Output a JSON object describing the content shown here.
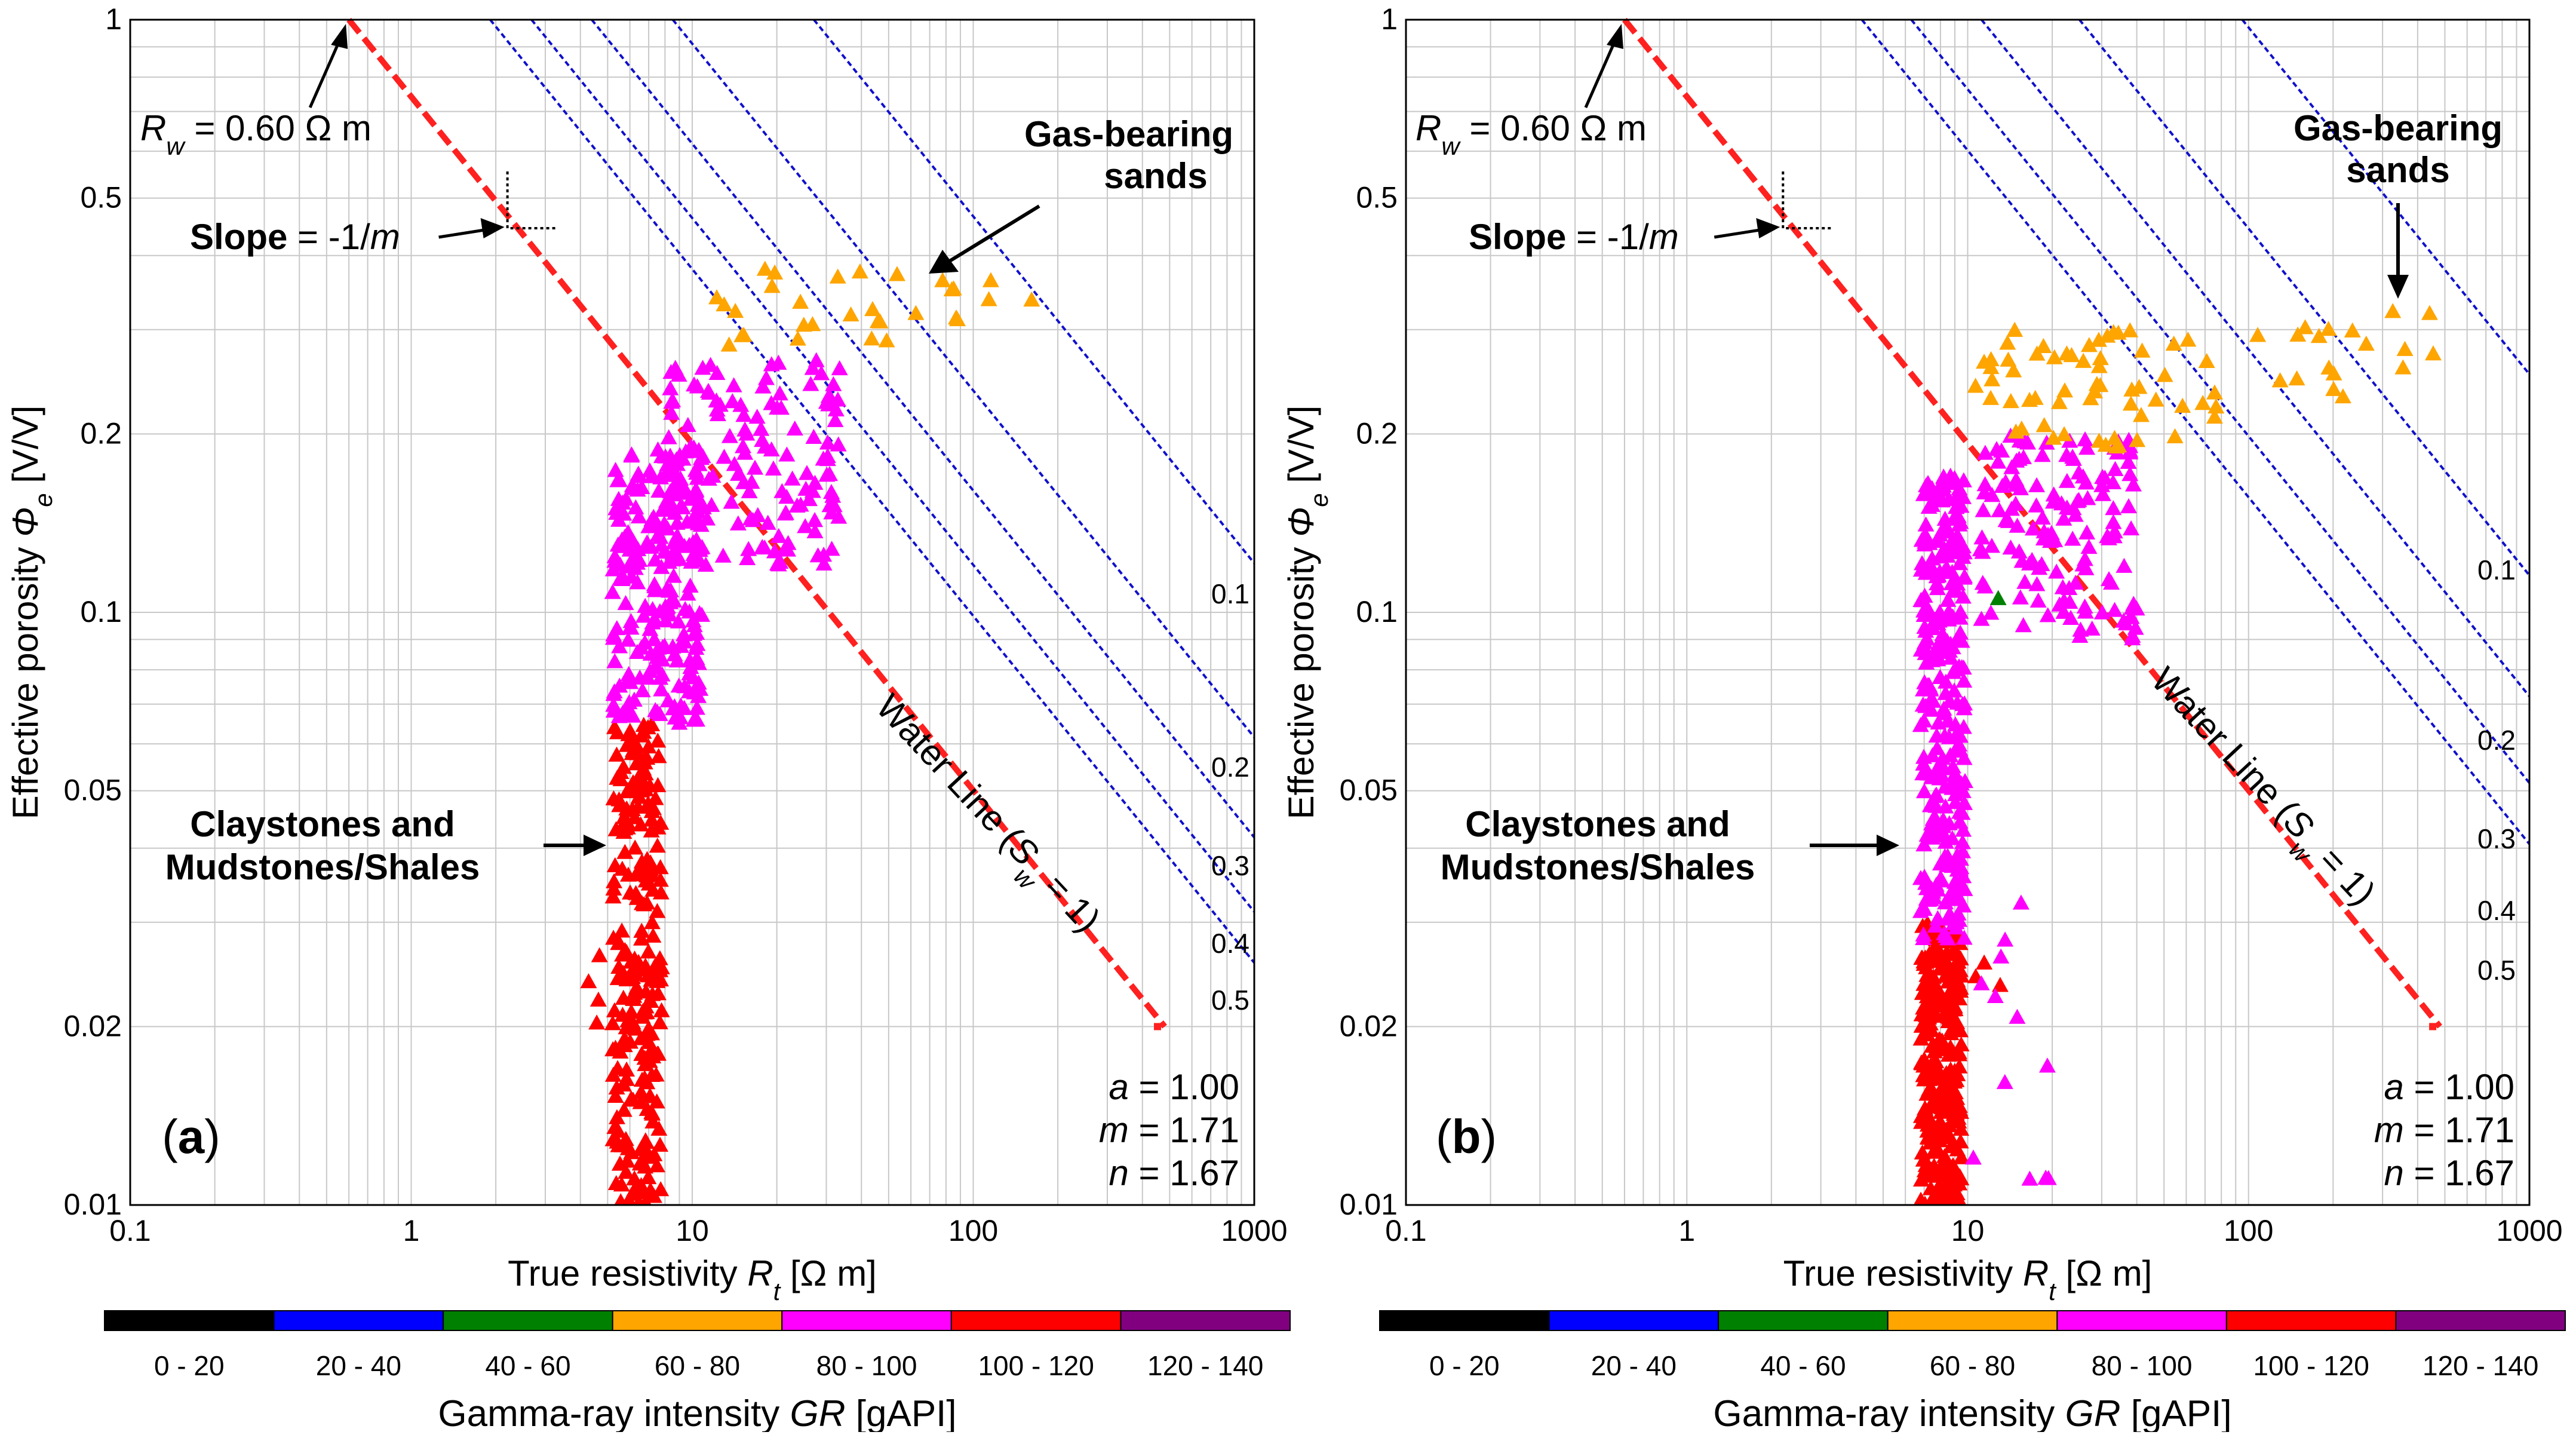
{
  "chart_data": [
    {
      "panel_label": "a",
      "type": "scatter",
      "xscale": "log",
      "yscale": "log",
      "xlim": [
        0.1,
        1000
      ],
      "ylim": [
        0.01,
        1
      ],
      "x_ticks": [
        "0.1",
        "1",
        "10",
        "100",
        "1000"
      ],
      "y_ticks": [
        "0.01",
        "0.02",
        "0.05",
        "0.1",
        "0.2",
        "0.5",
        "1"
      ],
      "xlabel": "True resistivity R_t [Ω m]",
      "ylabel": "Effective porosity Φ_e [V/V]",
      "grid": true,
      "params": {
        "a": "a = 1.00",
        "m": "m = 1.71",
        "n": "n = 1.67"
      },
      "rw_label": "R_w = 0.60 Ω m",
      "water_line_label": "Water Line (S_w = 1)",
      "slope_label": "Slope = -1/m",
      "sw_labels": [
        "0.1",
        "0.2",
        "0.3",
        "0.4",
        "0.5"
      ],
      "annotations": {
        "gas": [
          "Gas-bearing",
          "sands"
        ],
        "clay": [
          "Claystones and",
          "Mudstones/Shales"
        ]
      },
      "water_line": {
        "x": [
          0.6,
          480
        ],
        "y": [
          1,
          0.02
        ]
      },
      "sw_curves": [
        {
          "sw": 0.1,
          "x_at_phi1": 27.1
        },
        {
          "sw": 0.2,
          "x_at_phi1": 8.53
        },
        {
          "sw": 0.3,
          "x_at_phi1": 4.39
        },
        {
          "sw": 0.4,
          "x_at_phi1": 2.68
        },
        {
          "sw": 0.5,
          "x_at_phi1": 1.91
        }
      ],
      "series": [
        {
          "name": "100 - 120",
          "color": "#ff0000",
          "clusters": [
            {
              "x_range": [
                5.2,
                7.8
              ],
              "y_range": [
                0.01,
                0.065
              ],
              "count": 260
            },
            {
              "x_range": [
                3.9,
                5.2
              ],
              "y_range": [
                0.02,
                0.035
              ],
              "count": 4
            }
          ]
        },
        {
          "name": "80 - 100",
          "color": "#ff00ff",
          "clusters": [
            {
              "x_range": [
                5.2,
                11
              ],
              "y_range": [
                0.065,
                0.19
              ],
              "count": 230
            },
            {
              "x_range": [
                8,
                35
              ],
              "y_range": [
                0.12,
                0.27
              ],
              "count": 150
            }
          ]
        },
        {
          "name": "60 - 80",
          "color": "#ffa500",
          "clusters": [
            {
              "x_range": [
                10,
                90
              ],
              "y_range": [
                0.28,
                0.38
              ],
              "count": 28
            },
            {
              "x_range": [
                110,
                165
              ],
              "y_range": [
                0.33,
                0.37
              ],
              "count": 3
            }
          ]
        }
      ],
      "colorbar": {
        "title": "Gamma-ray intensity GR [gAPI]",
        "bins": [
          {
            "label": "0 - 20",
            "color": "#000000"
          },
          {
            "label": "20 - 40",
            "color": "#0000ff"
          },
          {
            "label": "40 - 60",
            "color": "#008000"
          },
          {
            "label": "60 - 80",
            "color": "#ffa500"
          },
          {
            "label": "80 - 100",
            "color": "#ff00ff"
          },
          {
            "label": "100 - 120",
            "color": "#ff0000"
          },
          {
            "label": "120 - 140",
            "color": "#800080"
          }
        ]
      }
    },
    {
      "panel_label": "b",
      "type": "scatter",
      "xscale": "log",
      "yscale": "log",
      "xlim": [
        0.1,
        1000
      ],
      "ylim": [
        0.01,
        1
      ],
      "x_ticks": [
        "0.1",
        "1",
        "10",
        "100",
        "1000"
      ],
      "y_ticks": [
        "0.01",
        "0.02",
        "0.05",
        "0.1",
        "0.2",
        "0.5",
        "1"
      ],
      "xlabel": "True resistivity R_t [Ω m]",
      "ylabel": "Effective porosity Φ_e [V/V]",
      "grid": true,
      "params": {
        "a": "a = 1.00",
        "m": "m = 1.71",
        "n": "n = 1.67"
      },
      "rw_label": "R_w = 0.60 Ω m",
      "water_line_label": "Water Line (S_w = 1)",
      "slope_label": "Slope = -1/m",
      "sw_labels": [
        "0.1",
        "0.2",
        "0.3",
        "0.4",
        "0.5"
      ],
      "annotations": {
        "gas": [
          "Gas-bearing",
          "sands"
        ],
        "clay": [
          "Claystones and",
          "Mudstones/Shales"
        ]
      },
      "water_line": {
        "x": [
          0.6,
          480
        ],
        "y": [
          1,
          0.02
        ]
      },
      "sw_curves": [
        {
          "sw": 0.1,
          "x_at_phi1": 95
        },
        {
          "sw": 0.2,
          "x_at_phi1": 25
        },
        {
          "sw": 0.3,
          "x_at_phi1": 11.2
        },
        {
          "sw": 0.4,
          "x_at_phi1": 6.3
        },
        {
          "sw": 0.5,
          "x_at_phi1": 4.2
        }
      ],
      "series": [
        {
          "name": "100 - 120",
          "color": "#ff0000",
          "clusters": [
            {
              "x_range": [
                6.8,
                9.5
              ],
              "y_range": [
                0.01,
                0.03
              ],
              "count": 300
            },
            {
              "x_range": [
                10,
                15
              ],
              "y_range": [
                0.02,
                0.03
              ],
              "count": 3
            }
          ]
        },
        {
          "name": "80 - 100",
          "color": "#ff00ff",
          "clusters": [
            {
              "x_range": [
                6.8,
                9.8
              ],
              "y_range": [
                0.028,
                0.17
              ],
              "count": 300
            },
            {
              "x_range": [
                11,
                40
              ],
              "y_range": [
                0.09,
                0.2
              ],
              "count": 140
            },
            {
              "x_range": [
                10,
                20
              ],
              "y_range": [
                0.011,
                0.05
              ],
              "count": 12
            }
          ]
        },
        {
          "name": "60 - 80",
          "color": "#ffa500",
          "clusters": [
            {
              "x_range": [
                10,
                80
              ],
              "y_range": [
                0.19,
                0.3
              ],
              "count": 60
            },
            {
              "x_range": [
                90,
                500
              ],
              "y_range": [
                0.23,
                0.33
              ],
              "count": 18
            }
          ]
        },
        {
          "name": "40 - 60",
          "color": "#008000",
          "clusters": [
            {
              "x_range": [
                12.5,
                13
              ],
              "y_range": [
                0.105,
                0.11
              ],
              "count": 1
            }
          ]
        }
      ],
      "colorbar": {
        "title": "Gamma-ray intensity GR [gAPI]",
        "bins": [
          {
            "label": "0 - 20",
            "color": "#000000"
          },
          {
            "label": "20 - 40",
            "color": "#0000ff"
          },
          {
            "label": "40 - 60",
            "color": "#008000"
          },
          {
            "label": "60 - 80",
            "color": "#ffa500"
          },
          {
            "label": "80 - 100",
            "color": "#ff00ff"
          },
          {
            "label": "100 - 120",
            "color": "#ff0000"
          },
          {
            "label": "120 - 140",
            "color": "#800080"
          }
        ]
      }
    }
  ]
}
